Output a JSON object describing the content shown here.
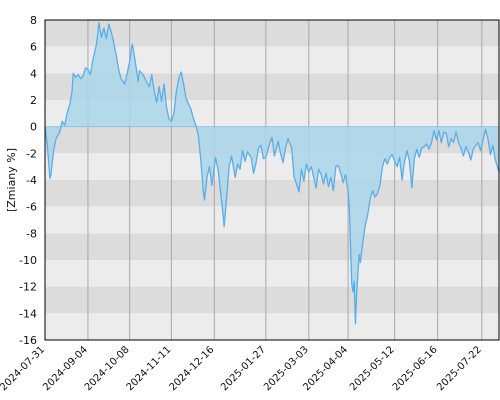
{
  "colors": {
    "band_dark": "#dcdcdc",
    "band_light": "#ececec",
    "vgrid": "#a8a8a8",
    "line": "#5aaee8",
    "fill": "#a9d6ea",
    "frame": "#000000"
  },
  "chart_data": {
    "type": "area",
    "title": "",
    "xlabel": "",
    "ylabel": "[Zmiany %]",
    "ylim": [
      -16,
      8
    ],
    "yticks": [
      8,
      6,
      4,
      2,
      0,
      -2,
      -4,
      -6,
      -8,
      -10,
      -12,
      -14,
      -16
    ],
    "ytick_labels": [
      "8",
      "6",
      "4",
      "2",
      "0",
      "-2",
      "-4",
      "-6",
      "-8",
      "-10",
      "-12",
      "-14",
      "-16"
    ],
    "grid": "horizontal bands + vertical date lines",
    "x_range": [
      "2024-07-31",
      "2025-08-05"
    ],
    "xticks": [
      "2024-07-31",
      "2024-09-04",
      "2024-10-08",
      "2024-11-11",
      "2024-12-16",
      "2025-01-27",
      "2025-03-03",
      "2025-04-04",
      "2025-05-12",
      "2025-06-16",
      "2025-07-22"
    ],
    "series": [
      {
        "values": [
          [
            "2024-07-31",
            0.0
          ],
          [
            "2024-08-02",
            -1.5
          ],
          [
            "2024-08-04",
            -3.9
          ],
          [
            "2024-08-05",
            -3.5
          ],
          [
            "2024-08-07",
            -1.8
          ],
          [
            "2024-08-09",
            -0.9
          ],
          [
            "2024-08-12",
            -0.4
          ],
          [
            "2024-08-14",
            0.4
          ],
          [
            "2024-08-16",
            0.1
          ],
          [
            "2024-08-18",
            1.0
          ],
          [
            "2024-08-20",
            1.6
          ],
          [
            "2024-08-22",
            2.6
          ],
          [
            "2024-08-23",
            4.0
          ],
          [
            "2024-08-25",
            3.7
          ],
          [
            "2024-08-27",
            3.9
          ],
          [
            "2024-08-29",
            3.6
          ],
          [
            "2024-08-31",
            3.8
          ],
          [
            "2024-09-02",
            4.4
          ],
          [
            "2024-09-04",
            4.3
          ],
          [
            "2024-09-06",
            3.9
          ],
          [
            "2024-09-08",
            5.0
          ],
          [
            "2024-09-11",
            6.2
          ],
          [
            "2024-09-12",
            7.0
          ],
          [
            "2024-09-13",
            7.8
          ],
          [
            "2024-09-15",
            6.7
          ],
          [
            "2024-09-17",
            7.4
          ],
          [
            "2024-09-19",
            6.6
          ],
          [
            "2024-09-21",
            7.7
          ],
          [
            "2024-09-23",
            7.1
          ],
          [
            "2024-09-25",
            6.3
          ],
          [
            "2024-09-27",
            5.4
          ],
          [
            "2024-09-29",
            4.3
          ],
          [
            "2024-10-01",
            3.6
          ],
          [
            "2024-10-04",
            3.2
          ],
          [
            "2024-10-06",
            4.0
          ],
          [
            "2024-10-08",
            4.9
          ],
          [
            "2024-10-10",
            6.2
          ],
          [
            "2024-10-11",
            5.8
          ],
          [
            "2024-10-13",
            4.6
          ],
          [
            "2024-10-15",
            3.4
          ],
          [
            "2024-10-16",
            4.2
          ],
          [
            "2024-10-19",
            3.9
          ],
          [
            "2024-10-22",
            3.3
          ],
          [
            "2024-10-24",
            3.0
          ],
          [
            "2024-10-26",
            3.9
          ],
          [
            "2024-10-28",
            2.7
          ],
          [
            "2024-10-30",
            1.8
          ],
          [
            "2024-11-01",
            3.0
          ],
          [
            "2024-11-03",
            1.9
          ],
          [
            "2024-11-05",
            3.2
          ],
          [
            "2024-11-07",
            1.5
          ],
          [
            "2024-11-09",
            0.6
          ],
          [
            "2024-11-11",
            0.4
          ],
          [
            "2024-11-13",
            1.0
          ],
          [
            "2024-11-15",
            2.6
          ],
          [
            "2024-11-17",
            3.6
          ],
          [
            "2024-11-19",
            4.1
          ],
          [
            "2024-11-21",
            3.2
          ],
          [
            "2024-11-23",
            2.1
          ],
          [
            "2024-11-25",
            1.7
          ],
          [
            "2024-11-27",
            1.3
          ],
          [
            "2024-11-29",
            0.6
          ],
          [
            "2024-12-01",
            0.1
          ],
          [
            "2024-12-03",
            -0.7
          ],
          [
            "2024-12-05",
            -2.5
          ],
          [
            "2024-12-07",
            -4.9
          ],
          [
            "2024-12-08",
            -5.5
          ],
          [
            "2024-12-10",
            -3.8
          ],
          [
            "2024-12-12",
            -3.0
          ],
          [
            "2024-12-14",
            -4.4
          ],
          [
            "2024-12-16",
            -3.0
          ],
          [
            "2024-12-17",
            -2.3
          ],
          [
            "2024-12-19",
            -3.2
          ],
          [
            "2024-12-21",
            -4.8
          ],
          [
            "2024-12-23",
            -6.5
          ],
          [
            "2024-12-24",
            -7.5
          ],
          [
            "2024-12-26",
            -5.4
          ],
          [
            "2024-12-28",
            -3.0
          ],
          [
            "2024-12-30",
            -2.2
          ],
          [
            "2025-01-02",
            -3.8
          ],
          [
            "2025-01-04",
            -2.8
          ],
          [
            "2025-01-06",
            -3.2
          ],
          [
            "2025-01-08",
            -1.8
          ],
          [
            "2025-01-10",
            -2.6
          ],
          [
            "2025-01-12",
            -1.9
          ],
          [
            "2025-01-15",
            -2.3
          ],
          [
            "2025-01-17",
            -3.5
          ],
          [
            "2025-01-19",
            -2.7
          ],
          [
            "2025-01-21",
            -1.6
          ],
          [
            "2025-01-23",
            -1.4
          ],
          [
            "2025-01-25",
            -2.4
          ],
          [
            "2025-01-27",
            -2.3
          ],
          [
            "2025-01-30",
            -1.3
          ],
          [
            "2025-02-01",
            -0.8
          ],
          [
            "2025-02-03",
            -2.2
          ],
          [
            "2025-02-06",
            -1.1
          ],
          [
            "2025-02-08",
            -2.0
          ],
          [
            "2025-02-10",
            -2.7
          ],
          [
            "2025-02-12",
            -1.6
          ],
          [
            "2025-02-14",
            -0.9
          ],
          [
            "2025-02-17",
            -1.6
          ],
          [
            "2025-02-19",
            -3.8
          ],
          [
            "2025-02-21",
            -4.3
          ],
          [
            "2025-02-23",
            -4.9
          ],
          [
            "2025-02-25",
            -3.2
          ],
          [
            "2025-02-27",
            -4.1
          ],
          [
            "2025-03-01",
            -2.8
          ],
          [
            "2025-03-03",
            -3.4
          ],
          [
            "2025-03-05",
            -3.0
          ],
          [
            "2025-03-07",
            -3.8
          ],
          [
            "2025-03-09",
            -4.6
          ],
          [
            "2025-03-11",
            -3.2
          ],
          [
            "2025-03-13",
            -3.6
          ],
          [
            "2025-03-15",
            -4.3
          ],
          [
            "2025-03-17",
            -3.5
          ],
          [
            "2025-03-19",
            -4.5
          ],
          [
            "2025-03-21",
            -3.8
          ],
          [
            "2025-03-23",
            -4.8
          ],
          [
            "2025-03-25",
            -3.0
          ],
          [
            "2025-03-27",
            -2.9
          ],
          [
            "2025-03-29",
            -3.5
          ],
          [
            "2025-03-31",
            -4.2
          ],
          [
            "2025-04-02",
            -3.6
          ],
          [
            "2025-04-04",
            -4.9
          ],
          [
            "2025-04-05",
            -6.0
          ],
          [
            "2025-04-06",
            -9.0
          ],
          [
            "2025-04-07",
            -11.8
          ],
          [
            "2025-04-08",
            -12.4
          ],
          [
            "2025-04-09",
            -11.6
          ],
          [
            "2025-04-10",
            -14.8
          ],
          [
            "2025-04-11",
            -12.5
          ],
          [
            "2025-04-13",
            -9.6
          ],
          [
            "2025-04-14",
            -10.2
          ],
          [
            "2025-04-16",
            -8.7
          ],
          [
            "2025-04-18",
            -7.4
          ],
          [
            "2025-04-20",
            -6.6
          ],
          [
            "2025-04-22",
            -5.4
          ],
          [
            "2025-04-24",
            -4.8
          ],
          [
            "2025-04-26",
            -5.3
          ],
          [
            "2025-04-28",
            -5.0
          ],
          [
            "2025-04-30",
            -4.4
          ],
          [
            "2025-05-02",
            -3.0
          ],
          [
            "2025-05-04",
            -2.4
          ],
          [
            "2025-05-06",
            -2.8
          ],
          [
            "2025-05-08",
            -2.3
          ],
          [
            "2025-05-10",
            -2.1
          ],
          [
            "2025-05-12",
            -2.6
          ],
          [
            "2025-05-14",
            -3.0
          ],
          [
            "2025-05-16",
            -2.3
          ],
          [
            "2025-05-18",
            -4.0
          ],
          [
            "2025-05-20",
            -2.6
          ],
          [
            "2025-05-22",
            -1.8
          ],
          [
            "2025-05-24",
            -2.6
          ],
          [
            "2025-05-26",
            -4.6
          ],
          [
            "2025-05-28",
            -2.4
          ],
          [
            "2025-05-30",
            -1.7
          ],
          [
            "2025-06-01",
            -2.3
          ],
          [
            "2025-06-03",
            -1.6
          ],
          [
            "2025-06-05",
            -1.5
          ],
          [
            "2025-06-07",
            -1.3
          ],
          [
            "2025-06-09",
            -1.7
          ],
          [
            "2025-06-11",
            -1.2
          ],
          [
            "2025-06-13",
            -0.3
          ],
          [
            "2025-06-15",
            -1.0
          ],
          [
            "2025-06-17",
            -0.3
          ],
          [
            "2025-06-19",
            -1.2
          ],
          [
            "2025-06-21",
            -0.4
          ],
          [
            "2025-06-23",
            -0.5
          ],
          [
            "2025-06-25",
            -1.5
          ],
          [
            "2025-06-27",
            -0.9
          ],
          [
            "2025-06-29",
            -1.2
          ],
          [
            "2025-07-01",
            -0.4
          ],
          [
            "2025-07-03",
            -1.2
          ],
          [
            "2025-07-05",
            -1.6
          ],
          [
            "2025-07-07",
            -2.2
          ],
          [
            "2025-07-09",
            -1.5
          ],
          [
            "2025-07-11",
            -1.9
          ],
          [
            "2025-07-13",
            -2.5
          ],
          [
            "2025-07-15",
            -1.7
          ],
          [
            "2025-07-17",
            -1.4
          ],
          [
            "2025-07-19",
            -1.2
          ],
          [
            "2025-07-21",
            -1.8
          ],
          [
            "2025-07-23",
            -1.0
          ],
          [
            "2025-07-25",
            -0.2
          ],
          [
            "2025-07-27",
            -0.9
          ],
          [
            "2025-07-29",
            -2.1
          ],
          [
            "2025-07-31",
            -1.4
          ],
          [
            "2025-08-02",
            -2.5
          ],
          [
            "2025-08-05",
            -3.4
          ]
        ]
      }
    ]
  }
}
